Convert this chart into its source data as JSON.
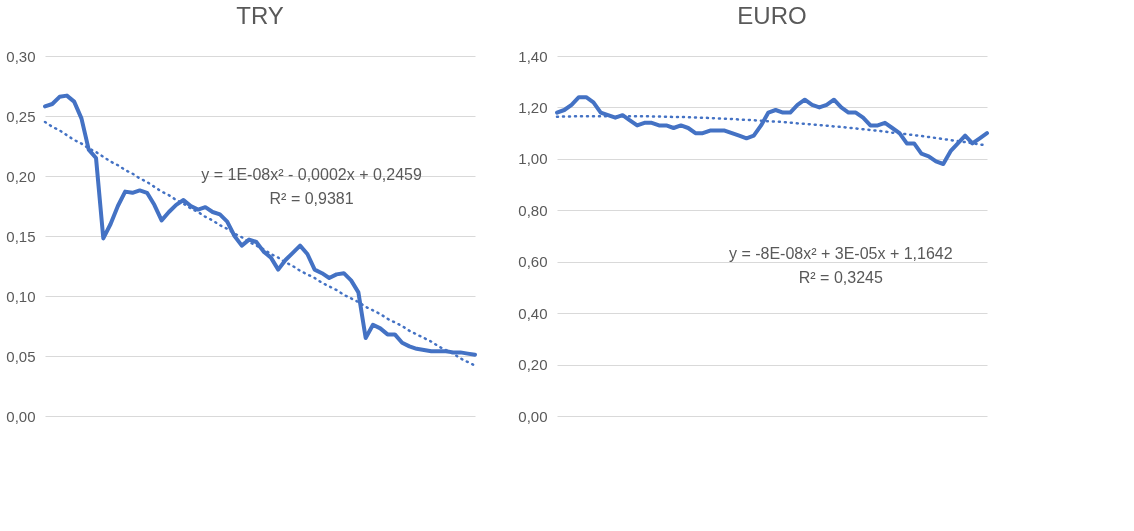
{
  "chart_data": [
    {
      "type": "line",
      "title": "TRY",
      "categories": [
        null,
        null,
        null,
        null,
        null,
        null,
        null,
        null,
        null,
        null,
        null,
        null,
        null,
        null,
        null,
        null,
        null,
        null,
        null,
        null,
        null,
        null,
        null,
        null,
        null,
        null,
        null,
        null,
        null,
        null,
        null,
        null,
        null,
        null,
        null,
        null,
        null,
        null,
        null,
        null,
        null,
        null,
        null,
        null,
        null,
        null,
        null,
        null,
        null,
        null,
        null,
        null,
        null,
        null,
        null,
        null,
        null,
        null,
        null,
        null
      ],
      "series": [
        {
          "color": "#4472c4",
          "line_style": "solid",
          "values": [
            0.258,
            0.26,
            0.266,
            0.267,
            0.262,
            0.248,
            0.222,
            0.215,
            0.148,
            0.16,
            0.175,
            0.187,
            0.186,
            0.188,
            0.186,
            0.176,
            0.163,
            0.17,
            0.176,
            0.18,
            0.175,
            0.172,
            0.174,
            0.17,
            0.168,
            0.162,
            0.15,
            0.142,
            0.147,
            0.145,
            0.137,
            0.132,
            0.122,
            0.13,
            0.136,
            0.142,
            0.135,
            0.122,
            0.119,
            0.115,
            0.118,
            0.119,
            0.113,
            0.103,
            0.065,
            0.076,
            0.073,
            0.068,
            0.068,
            0.061,
            0.058,
            0.056,
            0.055,
            0.054,
            0.054,
            0.054,
            0.053,
            0.053,
            0.052,
            0.051
          ]
        },
        {
          "color": "#4472c4",
          "line_style": "dotted",
          "values": [
            0.245,
            0.241,
            0.238,
            0.234,
            0.23,
            0.227,
            0.223,
            0.22,
            0.216,
            0.212,
            0.209,
            0.205,
            0.202,
            0.198,
            0.195,
            0.191,
            0.187,
            0.184,
            0.18,
            0.177,
            0.173,
            0.17,
            0.166,
            0.163,
            0.159,
            0.156,
            0.152,
            0.149,
            0.145,
            0.142,
            0.139,
            0.135,
            0.132,
            0.128,
            0.125,
            0.121,
            0.118,
            0.115,
            0.111,
            0.108,
            0.105,
            0.101,
            0.098,
            0.095,
            0.091,
            0.088,
            0.085,
            0.081,
            0.078,
            0.075,
            0.071,
            0.068,
            0.065,
            0.062,
            0.058,
            0.055,
            0.052,
            0.048,
            0.045,
            0.042
          ]
        }
      ],
      "ylim": [
        0,
        0.3
      ],
      "yticks": [
        {
          "value": 0,
          "label": "0,00"
        },
        {
          "value": 0.05,
          "label": "0,05"
        },
        {
          "value": 0.1,
          "label": "0,10"
        },
        {
          "value": 0.15,
          "label": "0,15"
        },
        {
          "value": 0.2,
          "label": "0,20"
        },
        {
          "value": 0.25,
          "label": "0,25"
        },
        {
          "value": 0.3,
          "label": "0,30"
        }
      ],
      "grid": "y",
      "marker": "none",
      "tick_labels": "y",
      "annotations": [
        "y = 1E-08x² - 0,0002x + 0,2459",
        "R² = 0,9381"
      ]
    },
    {
      "type": "line",
      "title": "EURO",
      "categories": [
        null,
        null,
        null,
        null,
        null,
        null,
        null,
        null,
        null,
        null,
        null,
        null,
        null,
        null,
        null,
        null,
        null,
        null,
        null,
        null,
        null,
        null,
        null,
        null,
        null,
        null,
        null,
        null,
        null,
        null,
        null,
        null,
        null,
        null,
        null,
        null,
        null,
        null,
        null,
        null,
        null,
        null,
        null,
        null,
        null,
        null,
        null,
        null,
        null,
        null,
        null,
        null,
        null,
        null,
        null,
        null,
        null,
        null,
        null,
        null
      ],
      "series": [
        {
          "color": "#4472c4",
          "line_style": "solid",
          "values": [
            1.18,
            1.19,
            1.21,
            1.24,
            1.24,
            1.22,
            1.18,
            1.17,
            1.16,
            1.17,
            1.15,
            1.13,
            1.14,
            1.14,
            1.13,
            1.13,
            1.12,
            1.13,
            1.12,
            1.1,
            1.1,
            1.11,
            1.11,
            1.11,
            1.1,
            1.09,
            1.08,
            1.09,
            1.13,
            1.18,
            1.19,
            1.18,
            1.18,
            1.21,
            1.23,
            1.21,
            1.2,
            1.21,
            1.23,
            1.2,
            1.18,
            1.18,
            1.16,
            1.13,
            1.13,
            1.14,
            1.12,
            1.1,
            1.06,
            1.06,
            1.02,
            1.01,
            0.99,
            0.98,
            1.03,
            1.06,
            1.09,
            1.06,
            1.08,
            1.1
          ]
        },
        {
          "color": "#4472c4",
          "line_style": "dotted",
          "values": [
            1.164,
            1.165,
            1.165,
            1.166,
            1.166,
            1.166,
            1.166,
            1.166,
            1.166,
            1.166,
            1.166,
            1.166,
            1.166,
            1.165,
            1.165,
            1.164,
            1.163,
            1.163,
            1.162,
            1.161,
            1.16,
            1.159,
            1.157,
            1.156,
            1.155,
            1.153,
            1.152,
            1.15,
            1.148,
            1.146,
            1.145,
            1.143,
            1.141,
            1.138,
            1.136,
            1.134,
            1.131,
            1.129,
            1.126,
            1.124,
            1.121,
            1.118,
            1.115,
            1.112,
            1.109,
            1.106,
            1.102,
            1.099,
            1.096,
            1.092,
            1.089,
            1.085,
            1.081,
            1.077,
            1.073,
            1.069,
            1.065,
            1.061,
            1.056,
            1.052
          ]
        }
      ],
      "ylim": [
        0,
        1.4
      ],
      "yticks": [
        {
          "value": 0,
          "label": "0,00"
        },
        {
          "value": 0.2,
          "label": "0,20"
        },
        {
          "value": 0.4,
          "label": "0,40"
        },
        {
          "value": 0.6,
          "label": "0,60"
        },
        {
          "value": 0.8,
          "label": "0,80"
        },
        {
          "value": 1.0,
          "label": "1,00"
        },
        {
          "value": 1.2,
          "label": "1,20"
        },
        {
          "value": 1.4,
          "label": "1,40"
        }
      ],
      "grid": "y",
      "marker": "none",
      "tick_labels": "y",
      "annotations": [
        "y = -8E-08x² + 3E-05x + 1,1642",
        "R² = 0,3245"
      ]
    }
  ]
}
